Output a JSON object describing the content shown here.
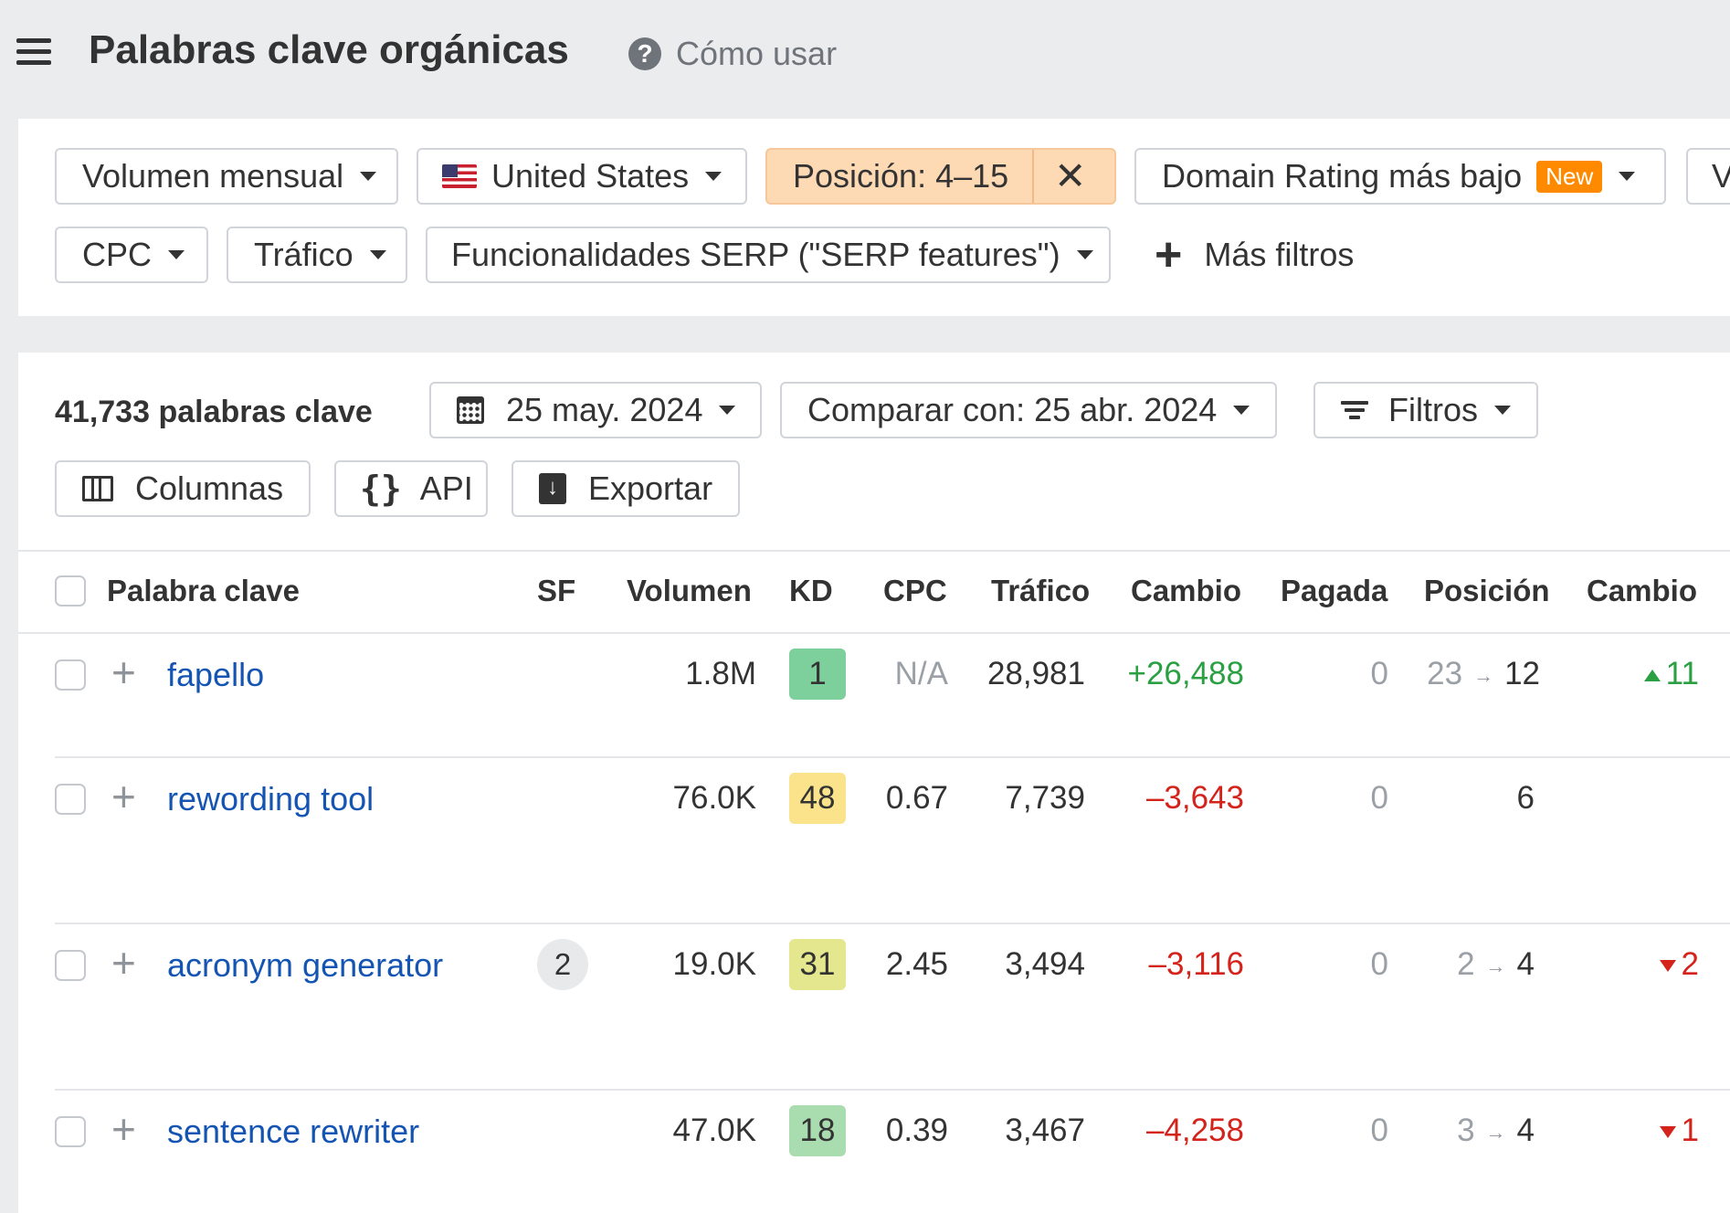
{
  "header": {
    "title": "Palabras clave orgánicas",
    "help_label": "Cómo usar"
  },
  "filters": {
    "volume_label": "Volumen mensual",
    "country_label": "United States",
    "position_label": "Posición: 4–15",
    "domain_rating_label": "Domain Rating más bajo",
    "new_badge": "New",
    "truncated_label": "Ve",
    "cpc_label": "CPC",
    "traffic_label": "Tráfico",
    "serp_features_label": "Funcionalidades SERP (\"SERP features\")",
    "more_filters_label": "Más filtros"
  },
  "toolbar": {
    "keyword_count": "41,733 palabras clave",
    "date_label": "25 may. 2024",
    "compare_label": "Comparar con: 25 abr. 2024",
    "filters_label": "Filtros",
    "columns_label": "Columnas",
    "api_label": "API",
    "export_label": "Exportar"
  },
  "table": {
    "headers": [
      "Palabra clave",
      "SF",
      "Volumen",
      "KD",
      "CPC",
      "Tráfico",
      "Cambio",
      "Pagada",
      "Posición",
      "Cambio"
    ],
    "rows": [
      {
        "keyword": "fapello",
        "sf": "",
        "volume": "1.8M",
        "kd": "1",
        "kd_color": "#7dcf9b",
        "cpc": "N/A",
        "traffic": "28,981",
        "change": "+26,488",
        "change_dir": "up",
        "paid": "0",
        "pos_from": "23",
        "pos_to": "12",
        "pos_change": "11",
        "pos_dir": "up"
      },
      {
        "keyword": "rewording tool",
        "sf": "",
        "volume": "76.0K",
        "kd": "48",
        "kd_color": "#fbe38b",
        "cpc": "0.67",
        "traffic": "7,739",
        "change": "–3,643",
        "change_dir": "down",
        "paid": "0",
        "pos_from": "",
        "pos_to": "6",
        "pos_change": "",
        "pos_dir": ""
      },
      {
        "keyword": "acronym generator",
        "sf": "2",
        "volume": "19.0K",
        "kd": "31",
        "kd_color": "#e5e78f",
        "cpc": "2.45",
        "traffic": "3,494",
        "change": "–3,116",
        "change_dir": "down",
        "paid": "0",
        "pos_from": "2",
        "pos_to": "4",
        "pos_change": "2",
        "pos_dir": "down"
      },
      {
        "keyword": "sentence rewriter",
        "sf": "",
        "volume": "47.0K",
        "kd": "18",
        "kd_color": "#a9dcae",
        "cpc": "0.39",
        "traffic": "3,467",
        "change": "–4,258",
        "change_dir": "down",
        "paid": "0",
        "pos_from": "3",
        "pos_to": "4",
        "pos_change": "1",
        "pos_dir": "down"
      }
    ]
  },
  "colors": {
    "link": "#1454b3",
    "positive": "#2aa043",
    "negative": "#d4231b",
    "active_filter": "#fdd9b4",
    "new_badge": "#ff8a00"
  }
}
